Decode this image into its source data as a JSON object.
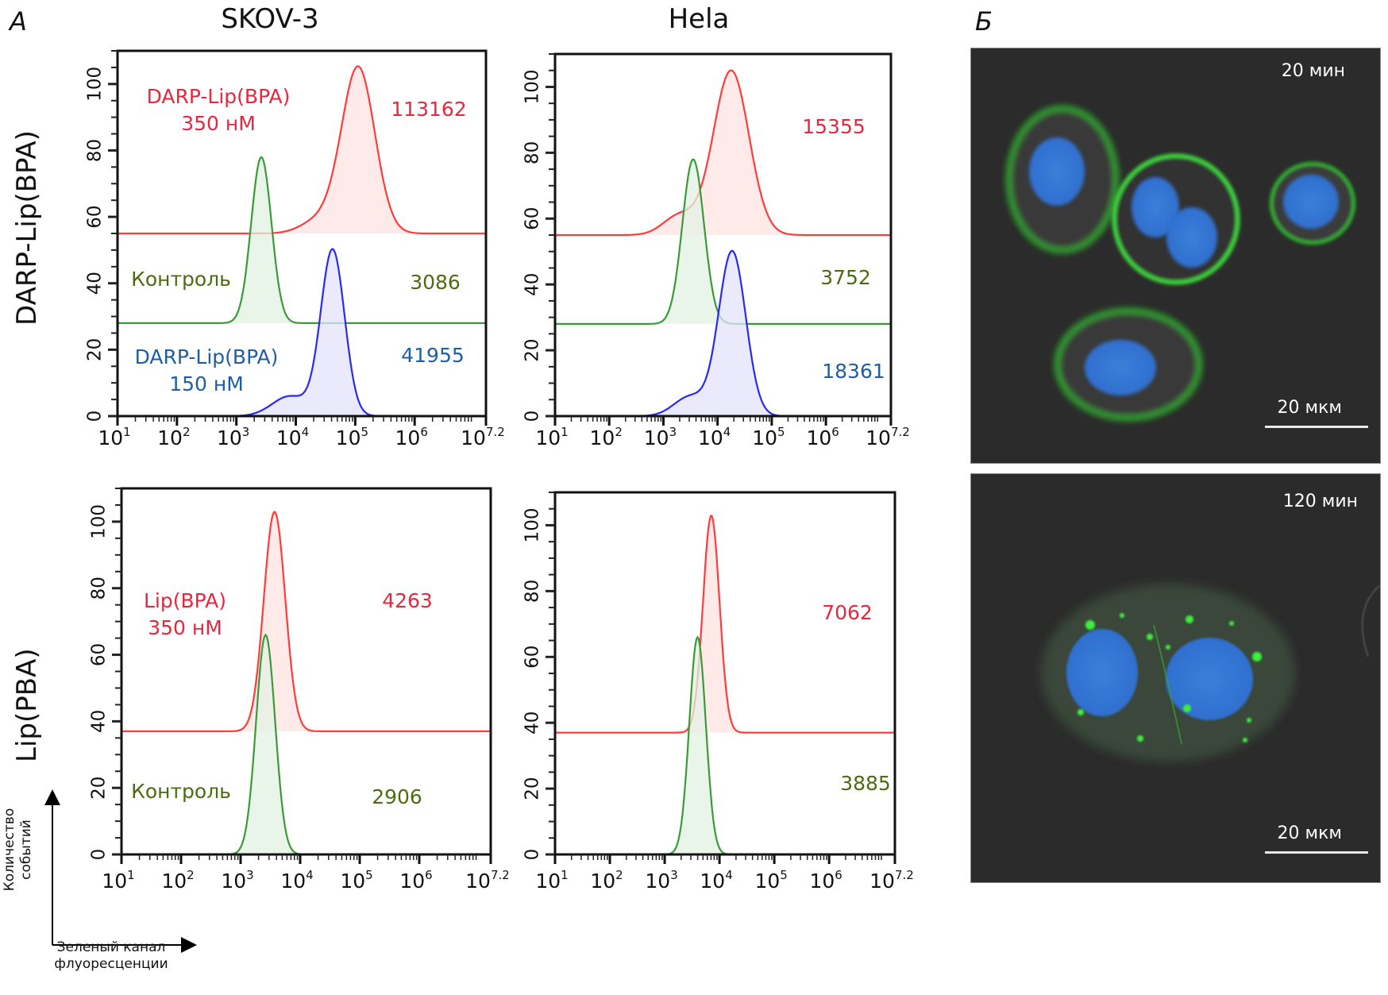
{
  "figure": {
    "panel_a_label": "А",
    "panel_b_label": "Б",
    "column_titles": [
      "SKOV-3",
      "Hela"
    ],
    "row_titles": [
      "DARP-Lip(BPA)",
      "Lip(PBA)"
    ],
    "axis_legend": {
      "y_label_line1": "Количество",
      "y_label_line2": "событий",
      "x_label_line1": "Зеленый канал",
      "x_label_line2": "флуоресценции"
    }
  },
  "colors": {
    "red": "#ff3b3b",
    "red_fill": "#ffe3e3",
    "red_text": "#e5283f",
    "green": "#3a9a3a",
    "green_fill": "#e3f2e3",
    "green_text": "#4d6b12",
    "blue": "#2a2aee",
    "blue_fill": "#e3e3fb",
    "blue_text": "#1f5ea0"
  },
  "chart_data": [
    {
      "type": "area",
      "id": "skov3-darp",
      "title": "SKOV-3 / DARP-Lip(BPA)",
      "xlabel": "Зеленый канал флуоресценции (log)",
      "ylabel": "Количество событий",
      "xscale": "log10",
      "xlim_log10": [
        1,
        7.2
      ],
      "ylim": [
        0,
        110
      ],
      "x_tick_labels": [
        "10",
        "10",
        "10",
        "10",
        "10",
        "10",
        "10"
      ],
      "x_tick_exponents": [
        "1",
        "2",
        "3",
        "4",
        "5",
        "6",
        "7.2"
      ],
      "y_ticks": [
        0,
        20,
        40,
        60,
        80,
        100
      ],
      "series": [
        {
          "name": "DARP-Lip(BPA) 350 нМ",
          "color": "red",
          "offset": 55,
          "peak_log10": 5.05,
          "peak_height": 50,
          "sigma_log10": 0.28,
          "shoulder_log10": 4.4,
          "shoulder_height": 4,
          "label_lines": [
            "DARP-Lip(BPA)",
            "350 нМ"
          ],
          "mfi": "113162"
        },
        {
          "name": "Контроль",
          "color": "green",
          "offset": 28,
          "peak_log10": 3.42,
          "peak_height": 50,
          "sigma_log10": 0.17,
          "label_lines": [
            "Контроль"
          ],
          "mfi": "3086"
        },
        {
          "name": "DARP-Lip(BPA) 150 нМ",
          "color": "blue",
          "offset": 0,
          "peak_log10": 4.62,
          "peak_height": 50,
          "sigma_log10": 0.2,
          "shoulder_log10": 3.9,
          "shoulder_height": 6,
          "label_lines": [
            "DARP-Lip(BPA)",
            "150 нМ"
          ],
          "mfi": "41955"
        }
      ]
    },
    {
      "type": "area",
      "id": "hela-darp",
      "title": "Hela / DARP-Lip(BPA)",
      "xscale": "log10",
      "xlim_log10": [
        1,
        7.2
      ],
      "ylim": [
        0,
        110
      ],
      "x_tick_labels": [
        "10",
        "10",
        "10",
        "10",
        "10",
        "10",
        "10"
      ],
      "x_tick_exponents": [
        "1",
        "2",
        "3",
        "4",
        "5",
        "6",
        "7.2"
      ],
      "y_ticks": [
        0,
        20,
        40,
        60,
        80,
        100
      ],
      "series": [
        {
          "name": "DARP-Lip(BPA) 350 нМ",
          "color": "red",
          "offset": 55,
          "peak_log10": 4.25,
          "peak_height": 50,
          "sigma_log10": 0.33,
          "shoulder_log10": 3.3,
          "shoulder_height": 6,
          "label_lines": [],
          "mfi": "15355"
        },
        {
          "name": "Контроль",
          "color": "green",
          "offset": 28,
          "peak_log10": 3.55,
          "peak_height": 50,
          "sigma_log10": 0.2,
          "label_lines": [],
          "mfi": "3752"
        },
        {
          "name": "DARP-Lip(BPA) 150 нМ",
          "color": "blue",
          "offset": 0,
          "peak_log10": 4.27,
          "peak_height": 50,
          "sigma_log10": 0.25,
          "shoulder_log10": 3.5,
          "shoulder_height": 6,
          "label_lines": [],
          "mfi": "18361"
        }
      ]
    },
    {
      "type": "area",
      "id": "skov3-lip",
      "title": "SKOV-3 / Lip(PBA)",
      "xscale": "log10",
      "xlim_log10": [
        1,
        7.2
      ],
      "ylim": [
        0,
        110
      ],
      "x_tick_labels": [
        "10",
        "10",
        "10",
        "10",
        "10",
        "10",
        "10"
      ],
      "x_tick_exponents": [
        "1",
        "2",
        "3",
        "4",
        "5",
        "6",
        "7.2"
      ],
      "y_ticks": [
        0,
        20,
        40,
        60,
        80,
        100
      ],
      "series": [
        {
          "name": "Lip(BPA) 350 нМ",
          "color": "red",
          "offset": 37,
          "peak_log10": 3.57,
          "peak_height": 66,
          "sigma_log10": 0.18,
          "label_lines": [
            "Lip(BPA)",
            "350 нМ"
          ],
          "mfi": "4263"
        },
        {
          "name": "Контроль",
          "color": "green",
          "offset": 0,
          "peak_log10": 3.42,
          "peak_height": 66,
          "sigma_log10": 0.16,
          "label_lines": [
            "Контроль"
          ],
          "mfi": "2906"
        }
      ]
    },
    {
      "type": "area",
      "id": "hela-lip",
      "title": "Hela / Lip(PBA)",
      "xscale": "log10",
      "xlim_log10": [
        1,
        7.2
      ],
      "ylim": [
        0,
        110
      ],
      "x_tick_labels": [
        "10",
        "10",
        "10",
        "10",
        "10",
        "10",
        "10"
      ],
      "x_tick_exponents": [
        "1",
        "2",
        "3",
        "4",
        "5",
        "6",
        "7.2"
      ],
      "y_ticks": [
        0,
        20,
        40,
        60,
        80,
        100
      ],
      "series": [
        {
          "name": "Lip(BPA) 350 нМ",
          "color": "red",
          "offset": 37,
          "peak_log10": 3.85,
          "peak_height": 66,
          "sigma_log10": 0.15,
          "label_lines": [],
          "mfi": "7062"
        },
        {
          "name": "Контроль",
          "color": "green",
          "offset": 0,
          "peak_log10": 3.6,
          "peak_height": 66,
          "sigma_log10": 0.15,
          "label_lines": [],
          "mfi": "3885"
        }
      ]
    }
  ],
  "microscopy": [
    {
      "time_label": "20 мин",
      "scale_label": "20 мкм"
    },
    {
      "time_label": "120 мин",
      "scale_label": "20 мкм"
    }
  ]
}
